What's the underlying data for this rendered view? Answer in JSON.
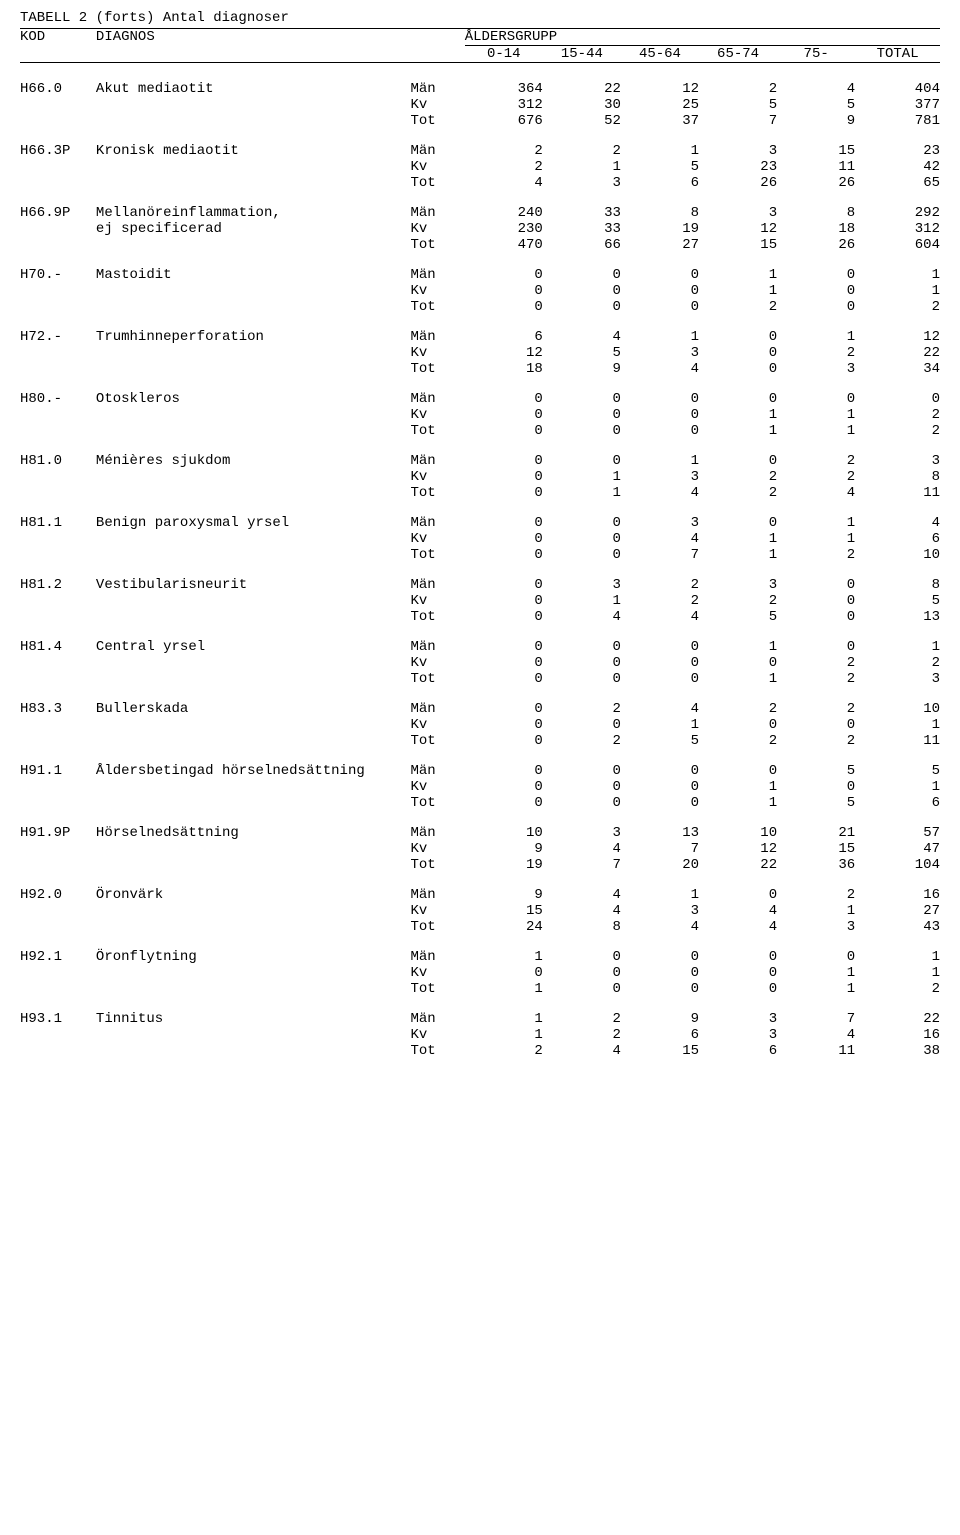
{
  "title": "TABELL 2 (forts) Antal diagnoser",
  "headers": {
    "kod": "KOD",
    "diagnos": "DIAGNOS",
    "aldersgrupp": "ÅLDERSGRUPP",
    "cols": [
      "0-14",
      "15-44",
      "45-64",
      "65-74",
      "75-"
    ],
    "total": "TOTAL"
  },
  "sexLabels": {
    "m": "Män",
    "k": "Kv",
    "t": "Tot"
  },
  "rows": [
    {
      "kod": "H66.0",
      "diag": [
        "Akut mediaotit"
      ],
      "m": [
        364,
        22,
        12,
        2,
        4,
        404
      ],
      "k": [
        312,
        30,
        25,
        5,
        5,
        377
      ],
      "t": [
        676,
        52,
        37,
        7,
        9,
        781
      ]
    },
    {
      "kod": "H66.3P",
      "diag": [
        "Kronisk mediaotit"
      ],
      "m": [
        2,
        2,
        1,
        3,
        15,
        23
      ],
      "k": [
        2,
        1,
        5,
        23,
        11,
        42
      ],
      "t": [
        4,
        3,
        6,
        26,
        26,
        65
      ]
    },
    {
      "kod": "H66.9P",
      "diag": [
        "Mellanöreinflammation,",
        "ej specificerad"
      ],
      "m": [
        240,
        33,
        8,
        3,
        8,
        292
      ],
      "k": [
        230,
        33,
        19,
        12,
        18,
        312
      ],
      "t": [
        470,
        66,
        27,
        15,
        26,
        604
      ]
    },
    {
      "kod": "H70.-",
      "diag": [
        "Mastoidit"
      ],
      "m": [
        0,
        0,
        0,
        1,
        0,
        1
      ],
      "k": [
        0,
        0,
        0,
        1,
        0,
        1
      ],
      "t": [
        0,
        0,
        0,
        2,
        0,
        2
      ]
    },
    {
      "kod": "H72.-",
      "diag": [
        "Trumhinneperforation"
      ],
      "m": [
        6,
        4,
        1,
        0,
        1,
        12
      ],
      "k": [
        12,
        5,
        3,
        0,
        2,
        22
      ],
      "t": [
        18,
        9,
        4,
        0,
        3,
        34
      ]
    },
    {
      "kod": "H80.-",
      "diag": [
        "Otoskleros"
      ],
      "m": [
        0,
        0,
        0,
        0,
        0,
        0
      ],
      "k": [
        0,
        0,
        0,
        1,
        1,
        2
      ],
      "t": [
        0,
        0,
        0,
        1,
        1,
        2
      ]
    },
    {
      "kod": "H81.0",
      "diag": [
        "Ménières sjukdom"
      ],
      "m": [
        0,
        0,
        1,
        0,
        2,
        3
      ],
      "k": [
        0,
        1,
        3,
        2,
        2,
        8
      ],
      "t": [
        0,
        1,
        4,
        2,
        4,
        11
      ]
    },
    {
      "kod": "H81.1",
      "diag": [
        "Benign paroxysmal yrsel"
      ],
      "m": [
        0,
        0,
        3,
        0,
        1,
        4
      ],
      "k": [
        0,
        0,
        4,
        1,
        1,
        6
      ],
      "t": [
        0,
        0,
        7,
        1,
        2,
        10
      ]
    },
    {
      "kod": "H81.2",
      "diag": [
        "Vestibularisneurit"
      ],
      "m": [
        0,
        3,
        2,
        3,
        0,
        8
      ],
      "k": [
        0,
        1,
        2,
        2,
        0,
        5
      ],
      "t": [
        0,
        4,
        4,
        5,
        0,
        13
      ]
    },
    {
      "kod": "H81.4",
      "diag": [
        "Central yrsel"
      ],
      "m": [
        0,
        0,
        0,
        1,
        0,
        1
      ],
      "k": [
        0,
        0,
        0,
        0,
        2,
        2
      ],
      "t": [
        0,
        0,
        0,
        1,
        2,
        3
      ]
    },
    {
      "kod": "H83.3",
      "diag": [
        "Bullerskada"
      ],
      "m": [
        0,
        2,
        4,
        2,
        2,
        10
      ],
      "k": [
        0,
        0,
        1,
        0,
        0,
        1
      ],
      "t": [
        0,
        2,
        5,
        2,
        2,
        11
      ]
    },
    {
      "kod": "H91.1",
      "diag": [
        "Åldersbetingad hörselnedsättning"
      ],
      "m": [
        0,
        0,
        0,
        0,
        5,
        5
      ],
      "k": [
        0,
        0,
        0,
        1,
        0,
        1
      ],
      "t": [
        0,
        0,
        0,
        1,
        5,
        6
      ]
    },
    {
      "kod": "H91.9P",
      "diag": [
        "Hörselnedsättning"
      ],
      "m": [
        10,
        3,
        13,
        10,
        21,
        57
      ],
      "k": [
        9,
        4,
        7,
        12,
        15,
        47
      ],
      "t": [
        19,
        7,
        20,
        22,
        36,
        104
      ]
    },
    {
      "kod": "H92.0",
      "diag": [
        "Öronvärk"
      ],
      "m": [
        9,
        4,
        1,
        0,
        2,
        16
      ],
      "k": [
        15,
        4,
        3,
        4,
        1,
        27
      ],
      "t": [
        24,
        8,
        4,
        4,
        3,
        43
      ]
    },
    {
      "kod": "H92.1",
      "diag": [
        "Öronflytning"
      ],
      "m": [
        1,
        0,
        0,
        0,
        0,
        1
      ],
      "k": [
        0,
        0,
        0,
        0,
        1,
        1
      ],
      "t": [
        1,
        0,
        0,
        0,
        1,
        2
      ]
    },
    {
      "kod": "H93.1",
      "diag": [
        "Tinnitus"
      ],
      "m": [
        1,
        2,
        9,
        3,
        7,
        22
      ],
      "k": [
        1,
        2,
        6,
        3,
        4,
        16
      ],
      "t": [
        2,
        4,
        15,
        6,
        11,
        38
      ]
    }
  ]
}
